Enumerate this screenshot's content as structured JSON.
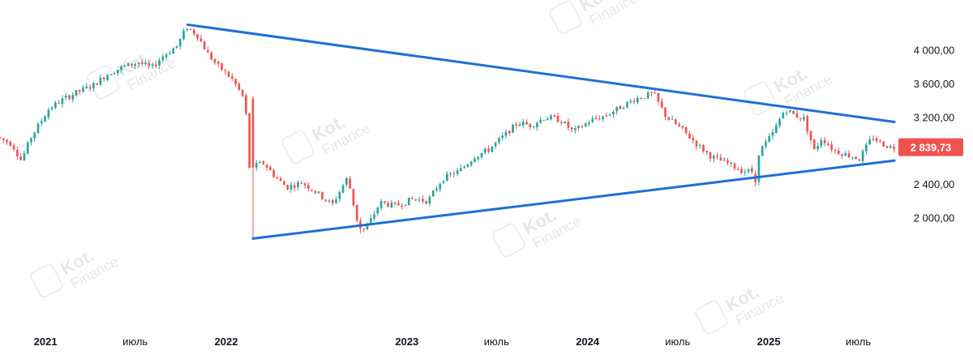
{
  "watermark": {
    "brand": "Kot.",
    "sub": "Finance"
  },
  "chart_data": {
    "type": "candlestick",
    "title": "",
    "xlabel": "",
    "ylabel": "",
    "y_scale": "linear",
    "ylim": [
      1750,
      4350
    ],
    "y_ticks": [
      "4 000,00",
      "3 600,00",
      "3 200,00",
      "2 400,00",
      "2 000,00"
    ],
    "y_tick_values": [
      4000,
      3600,
      3200,
      2400,
      2000
    ],
    "x_range": [
      "2020-10-01",
      "2025-09-15"
    ],
    "x_ticks": [
      {
        "label": "2021",
        "date": "2021-01-01",
        "major": true
      },
      {
        "label": "июль",
        "date": "2021-07-01",
        "major": false
      },
      {
        "label": "2022",
        "date": "2022-01-01",
        "major": true
      },
      {
        "label": "2023",
        "date": "2023-01-01",
        "major": true
      },
      {
        "label": "июль",
        "date": "2023-07-01",
        "major": false
      },
      {
        "label": "2024",
        "date": "2024-01-01",
        "major": true
      },
      {
        "label": "июль",
        "date": "2024-07-01",
        "major": false
      },
      {
        "label": "2025",
        "date": "2025-01-01",
        "major": true
      },
      {
        "label": "июль",
        "date": "2025-07-01",
        "major": false
      }
    ],
    "last_price": {
      "label": "2 839,73",
      "value": 2839.73
    },
    "colors": {
      "up": "#26a69a",
      "down": "#ef5350",
      "trendline": "#1e6fd9",
      "price_tag": "#ef5350"
    },
    "grid": false,
    "trendlines": [
      {
        "name": "upper",
        "points": [
          [
            "2021-10-15",
            4300
          ],
          [
            "2025-09-12",
            3140
          ]
        ]
      },
      {
        "name": "lower",
        "points": [
          [
            "2022-02-24",
            1750
          ],
          [
            "2025-09-12",
            2680
          ]
        ]
      }
    ],
    "price_path": [
      [
        "2020-10-01",
        2960
      ],
      [
        "2020-11-01",
        2880
      ],
      [
        "2020-11-20",
        2680
      ],
      [
        "2020-12-10",
        2960
      ],
      [
        "2021-01-15",
        3300
      ],
      [
        "2021-02-15",
        3420
      ],
      [
        "2021-03-15",
        3500
      ],
      [
        "2021-04-15",
        3580
      ],
      [
        "2021-05-15",
        3720
      ],
      [
        "2021-06-15",
        3800
      ],
      [
        "2021-07-15",
        3850
      ],
      [
        "2021-08-10",
        3780
      ],
      [
        "2021-09-01",
        3920
      ],
      [
        "2021-10-01",
        4050
      ],
      [
        "2021-10-20",
        4270
      ],
      [
        "2021-11-10",
        4180
      ],
      [
        "2021-12-01",
        3960
      ],
      [
        "2021-12-20",
        3820
      ],
      [
        "2022-01-20",
        3650
      ],
      [
        "2022-02-15",
        3400
      ],
      [
        "2022-02-24",
        2600
      ],
      [
        "2022-03-25",
        2650
      ],
      [
        "2022-04-15",
        2500
      ],
      [
        "2022-05-10",
        2360
      ],
      [
        "2022-06-10",
        2420
      ],
      [
        "2022-07-10",
        2300
      ],
      [
        "2022-08-10",
        2150
      ],
      [
        "2022-09-10",
        2480
      ],
      [
        "2022-09-30",
        1950
      ],
      [
        "2022-10-15",
        1840
      ],
      [
        "2022-11-15",
        2180
      ],
      [
        "2022-12-15",
        2140
      ],
      [
        "2023-01-20",
        2220
      ],
      [
        "2023-02-20",
        2200
      ],
      [
        "2023-03-20",
        2460
      ],
      [
        "2023-04-25",
        2560
      ],
      [
        "2023-05-25",
        2730
      ],
      [
        "2023-06-20",
        2800
      ],
      [
        "2023-07-20",
        2960
      ],
      [
        "2023-08-20",
        3130
      ],
      [
        "2023-09-15",
        3100
      ],
      [
        "2023-10-15",
        3200
      ],
      [
        "2023-11-15",
        3160
      ],
      [
        "2023-12-10",
        3020
      ],
      [
        "2024-01-15",
        3160
      ],
      [
        "2024-02-15",
        3220
      ],
      [
        "2024-03-15",
        3320
      ],
      [
        "2024-04-15",
        3420
      ],
      [
        "2024-05-20",
        3480
      ],
      [
        "2024-06-15",
        3200
      ],
      [
        "2024-07-15",
        3060
      ],
      [
        "2024-08-15",
        2880
      ],
      [
        "2024-09-15",
        2720
      ],
      [
        "2024-10-15",
        2650
      ],
      [
        "2024-11-15",
        2560
      ],
      [
        "2024-12-05",
        2550
      ],
      [
        "2024-12-20",
        2790
      ],
      [
        "2025-01-15",
        2990
      ],
      [
        "2025-02-10",
        3300
      ],
      [
        "2025-03-01",
        3220
      ],
      [
        "2025-03-20",
        3180
      ],
      [
        "2025-04-10",
        2800
      ],
      [
        "2025-04-25",
        2950
      ],
      [
        "2025-05-20",
        2800
      ],
      [
        "2025-06-20",
        2740
      ],
      [
        "2025-07-10",
        2700
      ],
      [
        "2025-08-05",
        2960
      ],
      [
        "2025-08-25",
        2880
      ],
      [
        "2025-09-12",
        2840
      ]
    ],
    "notable_candles": [
      {
        "date": "2022-02-24",
        "open": 3420,
        "high": 3450,
        "low": 1760,
        "close": 2600
      },
      {
        "date": "2022-10-05",
        "open": 1960,
        "high": 2000,
        "low": 1810,
        "close": 1870
      },
      {
        "date": "2024-12-10",
        "open": 2520,
        "high": 2560,
        "low": 2370,
        "close": 2420
      }
    ]
  }
}
